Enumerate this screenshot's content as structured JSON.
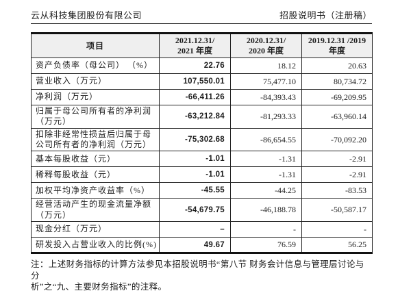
{
  "page_header": {
    "company": "云从科技集团股份有限公司",
    "doc_title": "招股说明书（注册稿）"
  },
  "table": {
    "item_header": "项目",
    "columns": [
      {
        "line1": "2021.12.31/",
        "line2": "2021 年度"
      },
      {
        "line1": "2020.12.31/",
        "line2": "2020 年度"
      },
      {
        "line1": "2019.12.31 /2019",
        "line2": "年度"
      }
    ],
    "rows": [
      {
        "label": "资产负债率（母公司） （%）",
        "values": [
          "22.76",
          "18.12",
          "20.63"
        ]
      },
      {
        "label": "营业收入（万元）",
        "values": [
          "107,550.01",
          "75,477.10",
          "80,734.72"
        ]
      },
      {
        "label": "净利润（万元）",
        "values": [
          "-66,411.26",
          "-84,393.43",
          "-69,209.95"
        ]
      },
      {
        "label": "归属于母公司所有者的净利润（万元）",
        "values": [
          "-63,212.84",
          "-81,293.33",
          "-63,960.14"
        ]
      },
      {
        "label": "扣除非经常性损益后归属于母公司所有者的净利润（万元）",
        "values": [
          "-75,302.68",
          "-86,654.55",
          "-70,092.20"
        ]
      },
      {
        "label": "基本每股收益（元）",
        "values": [
          "-1.01",
          "-1.31",
          "-2.91"
        ]
      },
      {
        "label": "稀释每股收益（元）",
        "values": [
          "-1.01",
          "-1.31",
          "-2.91"
        ]
      },
      {
        "label": "加权平均净资产收益率（%）",
        "values": [
          "-45.55",
          "-44.25",
          "-83.53"
        ]
      },
      {
        "label": "经营活动产生的现金流量净额（万元）",
        "values": [
          "-54,679.75",
          "-46,188.78",
          "-50,587.17"
        ]
      },
      {
        "label": "现金分红（万元）",
        "values": [
          "–",
          "-",
          "-"
        ]
      },
      {
        "label": "研发投入占营业收入的比例(%)",
        "values": [
          "49.67",
          "76.59",
          "56.25"
        ]
      }
    ]
  },
  "footnote": {
    "line1": "注：上述财务指标的计算方法参见本招股说明书“第八节 财务会计信息与管理层讨论与分",
    "line2": "析”之“九、主要财务指标”的注释。"
  }
}
